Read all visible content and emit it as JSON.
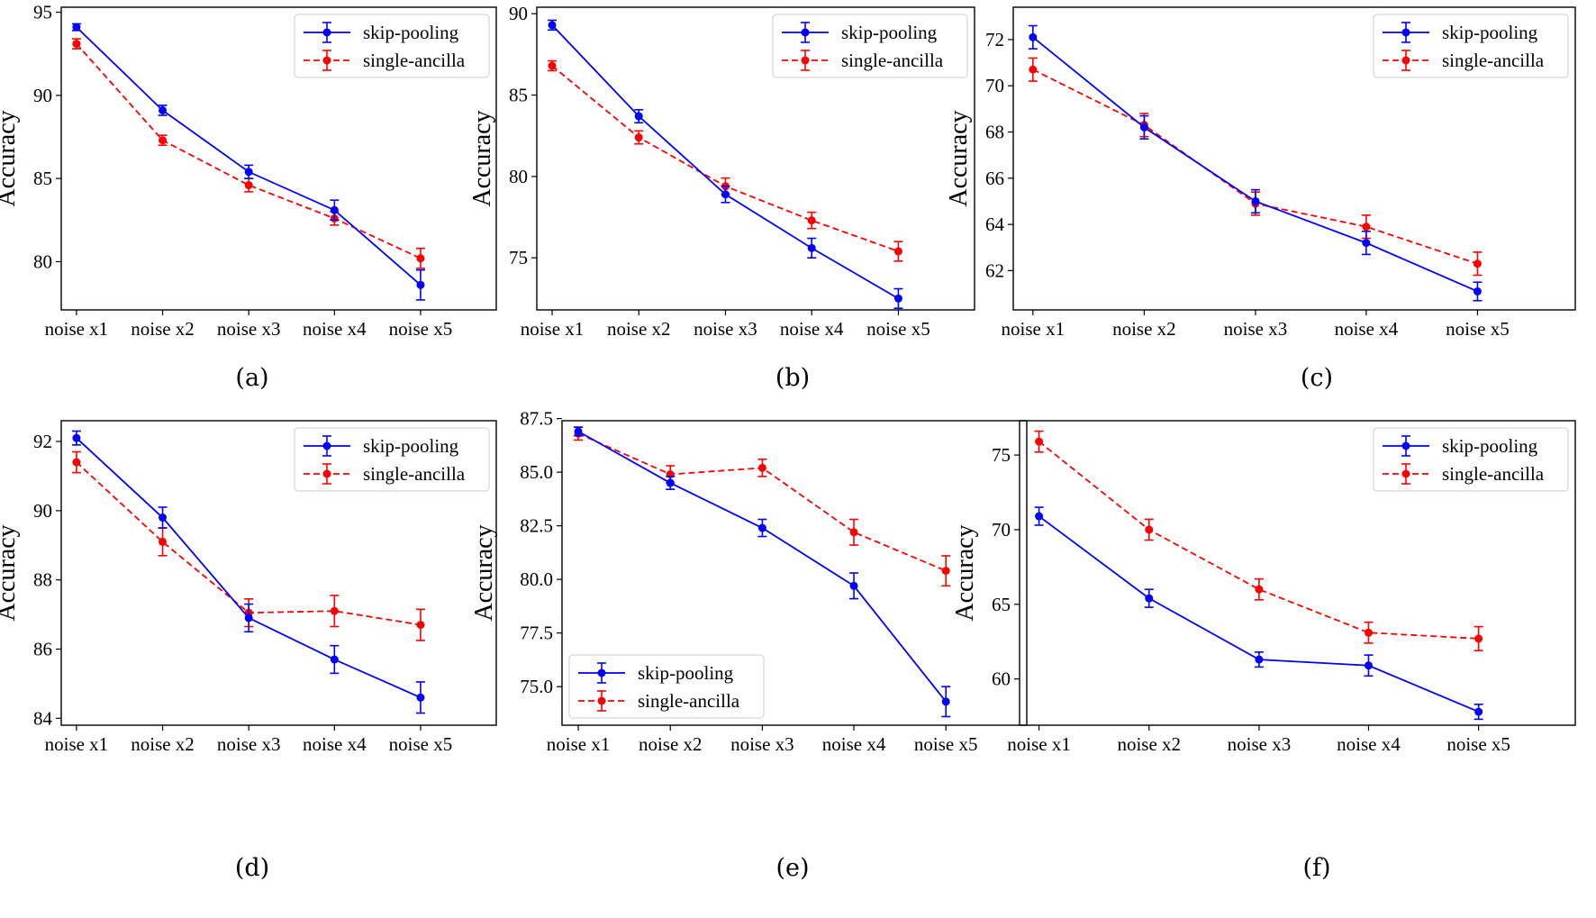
{
  "colors": {
    "skip": "#0000ff",
    "single": "#ff0000",
    "axis": "#000000",
    "legend_border": "#cccccc"
  },
  "chart_data": [
    {
      "type": "line",
      "caption": "(a)",
      "ylabel": "Accuracy",
      "categories": [
        "noise x1",
        "noise x2",
        "noise x3",
        "noise x4",
        "noise x5"
      ],
      "ylim": [
        77.1,
        95.3
      ],
      "yticks": [
        80,
        85,
        90,
        95
      ],
      "ytick_labels": [
        "80",
        "85",
        "90",
        "95"
      ],
      "legend": "upper-right",
      "grid": false,
      "series": [
        {
          "name": "skip-pooling",
          "style": "solid",
          "values": [
            94.1,
            89.1,
            85.4,
            83.1,
            78.6
          ],
          "errors": [
            0.2,
            0.3,
            0.4,
            0.6,
            0.9
          ]
        },
        {
          "name": "single-ancilla",
          "style": "dashed",
          "values": [
            93.1,
            87.3,
            84.6,
            82.6,
            80.2
          ],
          "errors": [
            0.3,
            0.3,
            0.4,
            0.4,
            0.6
          ]
        }
      ]
    },
    {
      "type": "line",
      "caption": "(b)",
      "ylabel": "Accuracy",
      "categories": [
        "noise x1",
        "noise x2",
        "noise x3",
        "noise x4",
        "noise x5"
      ],
      "ylim": [
        71.8,
        90.4
      ],
      "yticks": [
        75,
        80,
        85,
        90
      ],
      "ytick_labels": [
        "75",
        "80",
        "85",
        "90"
      ],
      "legend": "upper-right",
      "grid": false,
      "series": [
        {
          "name": "skip-pooling",
          "style": "solid",
          "values": [
            89.3,
            83.7,
            78.9,
            75.6,
            72.5
          ],
          "errors": [
            0.3,
            0.4,
            0.5,
            0.6,
            0.6
          ]
        },
        {
          "name": "single-ancilla",
          "style": "dashed",
          "values": [
            86.8,
            82.4,
            79.4,
            77.3,
            75.4
          ],
          "errors": [
            0.3,
            0.4,
            0.5,
            0.5,
            0.6
          ]
        }
      ]
    },
    {
      "type": "line",
      "caption": "(c)",
      "ylabel": "Accuracy",
      "categories": [
        "noise x1",
        "noise x2",
        "noise x3",
        "noise x4",
        "noise x5"
      ],
      "ylim": [
        60.3,
        73.4
      ],
      "yticks": [
        62,
        64,
        66,
        68,
        70,
        72
      ],
      "ytick_labels": [
        "62",
        "64",
        "66",
        "68",
        "70",
        "72"
      ],
      "legend": "upper-right",
      "grid": false,
      "series": [
        {
          "name": "skip-pooling",
          "style": "solid",
          "values": [
            72.1,
            68.2,
            65.0,
            63.2,
            61.1
          ],
          "errors": [
            0.5,
            0.5,
            0.5,
            0.5,
            0.4
          ]
        },
        {
          "name": "single-ancilla",
          "style": "dashed",
          "values": [
            70.7,
            68.3,
            64.9,
            63.9,
            62.3
          ],
          "errors": [
            0.5,
            0.5,
            0.5,
            0.5,
            0.5
          ]
        }
      ]
    },
    {
      "type": "line",
      "caption": "(d)",
      "ylabel": "Accuracy",
      "categories": [
        "noise x1",
        "noise x2",
        "noise x3",
        "noise x4",
        "noise x5"
      ],
      "ylim": [
        83.8,
        92.6
      ],
      "yticks": [
        84,
        86,
        88,
        90,
        92
      ],
      "ytick_labels": [
        "84",
        "86",
        "88",
        "90",
        "92"
      ],
      "legend": "upper-right",
      "grid": false,
      "series": [
        {
          "name": "skip-pooling",
          "style": "solid",
          "values": [
            92.1,
            89.8,
            86.9,
            85.7,
            84.6
          ],
          "errors": [
            0.2,
            0.3,
            0.4,
            0.4,
            0.45
          ]
        },
        {
          "name": "single-ancilla",
          "style": "dashed",
          "values": [
            91.4,
            89.1,
            87.05,
            87.1,
            86.7
          ],
          "errors": [
            0.3,
            0.4,
            0.4,
            0.45,
            0.45
          ]
        }
      ]
    },
    {
      "type": "line",
      "caption": "(e)",
      "ylabel": "Accuracy",
      "categories": [
        "noise x1",
        "noise x2",
        "noise x3",
        "noise x4",
        "noise x5"
      ],
      "ylim": [
        73.2,
        87.4
      ],
      "yticks": [
        75.0,
        77.5,
        80.0,
        82.5,
        85.0,
        87.5
      ],
      "ytick_labels": [
        "75.0",
        "77.5",
        "80.0",
        "82.5",
        "85.0",
        "87.5"
      ],
      "legend": "lower-left",
      "grid": false,
      "series": [
        {
          "name": "skip-pooling",
          "style": "solid",
          "values": [
            86.9,
            84.5,
            82.4,
            79.7,
            74.3
          ],
          "errors": [
            0.2,
            0.3,
            0.4,
            0.6,
            0.7
          ]
        },
        {
          "name": "single-ancilla",
          "style": "dashed",
          "values": [
            86.8,
            84.9,
            85.2,
            82.2,
            80.4
          ],
          "errors": [
            0.3,
            0.4,
            0.4,
            0.6,
            0.7
          ]
        }
      ]
    },
    {
      "type": "line",
      "caption": "(f)",
      "ylabel": "Accuracy",
      "categories": [
        "noise x1",
        "noise x2",
        "noise x3",
        "noise x4",
        "noise x5"
      ],
      "ylim": [
        56.9,
        77.3
      ],
      "yticks": [
        60,
        65,
        70,
        75
      ],
      "ytick_labels": [
        "60",
        "65",
        "70",
        "75"
      ],
      "legend": "upper-right",
      "grid": false,
      "series": [
        {
          "name": "skip-pooling",
          "style": "solid",
          "values": [
            70.9,
            65.4,
            61.3,
            60.9,
            57.8
          ],
          "errors": [
            0.6,
            0.6,
            0.5,
            0.7,
            0.5
          ]
        },
        {
          "name": "single-ancilla",
          "style": "dashed",
          "values": [
            75.9,
            70.0,
            66.0,
            63.1,
            62.7
          ],
          "errors": [
            0.7,
            0.7,
            0.7,
            0.7,
            0.8
          ]
        }
      ]
    }
  ]
}
